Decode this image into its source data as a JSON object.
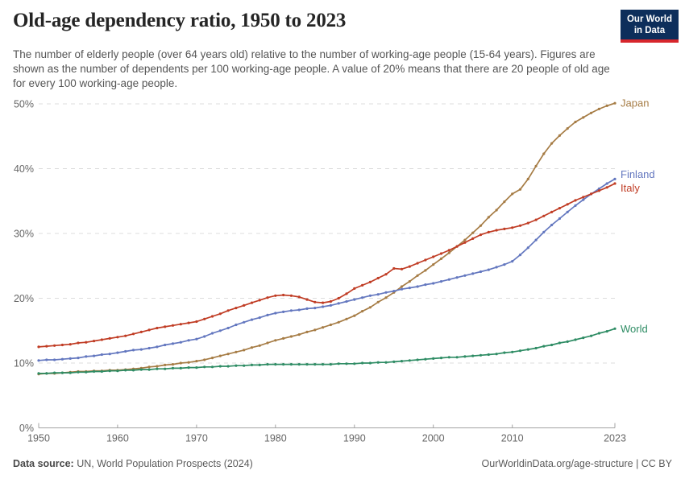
{
  "header": {
    "title": "Old-age dependency ratio, 1950 to 2023",
    "subtitle": "The number of elderly people (over 64 years old) relative to the number of working-age people (15-64 years). Figures are shown as the number of dependents per 100 working-age people. A value of 20% means that there are 20 people of old age for every 100 working-age people.",
    "logo": {
      "line1": "Our World",
      "line2": "in Data",
      "bg_color": "#0D2E5B",
      "accent_color": "#D7262C"
    }
  },
  "chart_data": {
    "type": "line",
    "title": "Old-age dependency ratio, 1950 to 2023",
    "xlabel": "",
    "ylabel": "",
    "ylim": [
      0,
      50
    ],
    "yticks": [
      0,
      10,
      20,
      30,
      40,
      50
    ],
    "ytick_format": "{v}%",
    "xticks": [
      1950,
      1960,
      1970,
      1980,
      1990,
      2000,
      2010,
      2023
    ],
    "grid": "horizontal-dashed",
    "legend": "line-end-labels",
    "marker": "point-per-year",
    "x": [
      1950,
      1951,
      1952,
      1953,
      1954,
      1955,
      1956,
      1957,
      1958,
      1959,
      1960,
      1961,
      1962,
      1963,
      1964,
      1965,
      1966,
      1967,
      1968,
      1969,
      1970,
      1971,
      1972,
      1973,
      1974,
      1975,
      1976,
      1977,
      1978,
      1979,
      1980,
      1981,
      1982,
      1983,
      1984,
      1985,
      1986,
      1987,
      1988,
      1989,
      1990,
      1991,
      1992,
      1993,
      1994,
      1995,
      1996,
      1997,
      1998,
      1999,
      2000,
      2001,
      2002,
      2003,
      2004,
      2005,
      2006,
      2007,
      2008,
      2009,
      2010,
      2011,
      2012,
      2013,
      2014,
      2015,
      2016,
      2017,
      2018,
      2019,
      2020,
      2021,
      2022,
      2023
    ],
    "series": [
      {
        "name": "Japan",
        "color": "#A67C45",
        "values": [
          8.3,
          8.4,
          8.4,
          8.5,
          8.6,
          8.7,
          8.7,
          8.8,
          8.8,
          8.9,
          8.9,
          9.0,
          9.1,
          9.2,
          9.4,
          9.5,
          9.7,
          9.8,
          10.0,
          10.1,
          10.3,
          10.5,
          10.8,
          11.1,
          11.4,
          11.7,
          12.0,
          12.4,
          12.7,
          13.1,
          13.5,
          13.8,
          14.1,
          14.4,
          14.8,
          15.1,
          15.5,
          15.9,
          16.3,
          16.8,
          17.3,
          18.0,
          18.6,
          19.4,
          20.1,
          20.9,
          21.8,
          22.6,
          23.5,
          24.3,
          25.2,
          26.1,
          27.0,
          28.0,
          29.0,
          30.1,
          31.2,
          32.5,
          33.6,
          34.9,
          36.1,
          36.8,
          38.4,
          40.4,
          42.3,
          43.9,
          45.1,
          46.2,
          47.2,
          47.9,
          48.6,
          49.2,
          49.7,
          50.1
        ]
      },
      {
        "name": "Finland",
        "color": "#6377BF",
        "values": [
          10.4,
          10.5,
          10.5,
          10.6,
          10.7,
          10.8,
          11.0,
          11.1,
          11.3,
          11.4,
          11.6,
          11.8,
          12.0,
          12.1,
          12.3,
          12.5,
          12.8,
          13.0,
          13.2,
          13.5,
          13.7,
          14.1,
          14.6,
          15.0,
          15.4,
          15.9,
          16.3,
          16.7,
          17.0,
          17.4,
          17.7,
          17.9,
          18.1,
          18.2,
          18.4,
          18.5,
          18.7,
          18.9,
          19.2,
          19.5,
          19.8,
          20.1,
          20.4,
          20.6,
          20.9,
          21.1,
          21.4,
          21.6,
          21.8,
          22.1,
          22.3,
          22.6,
          22.9,
          23.2,
          23.5,
          23.8,
          24.1,
          24.4,
          24.8,
          25.2,
          25.7,
          26.7,
          27.8,
          29.0,
          30.2,
          31.3,
          32.3,
          33.3,
          34.3,
          35.2,
          36.1,
          36.9,
          37.7,
          38.4
        ]
      },
      {
        "name": "Italy",
        "color": "#C03C24",
        "values": [
          12.5,
          12.6,
          12.7,
          12.8,
          12.9,
          13.1,
          13.2,
          13.4,
          13.6,
          13.8,
          14.0,
          14.2,
          14.5,
          14.8,
          15.1,
          15.4,
          15.6,
          15.8,
          16.0,
          16.2,
          16.4,
          16.8,
          17.2,
          17.6,
          18.1,
          18.5,
          18.9,
          19.3,
          19.7,
          20.1,
          20.4,
          20.5,
          20.4,
          20.2,
          19.8,
          19.4,
          19.3,
          19.5,
          20.0,
          20.7,
          21.5,
          22.0,
          22.5,
          23.1,
          23.7,
          24.6,
          24.5,
          24.9,
          25.4,
          25.9,
          26.4,
          26.9,
          27.4,
          28.0,
          28.6,
          29.2,
          29.8,
          30.2,
          30.5,
          30.7,
          30.9,
          31.2,
          31.6,
          32.1,
          32.7,
          33.3,
          33.9,
          34.5,
          35.1,
          35.6,
          36.1,
          36.6,
          37.1,
          37.7
        ]
      },
      {
        "name": "World",
        "color": "#2E8C64",
        "values": [
          8.4,
          8.4,
          8.5,
          8.5,
          8.5,
          8.6,
          8.6,
          8.7,
          8.7,
          8.8,
          8.8,
          8.9,
          8.9,
          9.0,
          9.0,
          9.1,
          9.1,
          9.2,
          9.2,
          9.3,
          9.3,
          9.4,
          9.4,
          9.5,
          9.5,
          9.6,
          9.6,
          9.7,
          9.7,
          9.8,
          9.8,
          9.8,
          9.8,
          9.8,
          9.8,
          9.8,
          9.8,
          9.8,
          9.9,
          9.9,
          9.9,
          10.0,
          10.0,
          10.1,
          10.1,
          10.2,
          10.3,
          10.4,
          10.5,
          10.6,
          10.7,
          10.8,
          10.9,
          10.9,
          11.0,
          11.1,
          11.2,
          11.3,
          11.4,
          11.6,
          11.7,
          11.9,
          12.1,
          12.3,
          12.6,
          12.8,
          13.1,
          13.3,
          13.6,
          13.9,
          14.2,
          14.6,
          14.9,
          15.3
        ]
      }
    ]
  },
  "footer": {
    "source_label": "Data source:",
    "source_text": " UN, World Population Prospects (2024)",
    "credit": "OurWorldinData.org/age-structure | CC BY"
  }
}
